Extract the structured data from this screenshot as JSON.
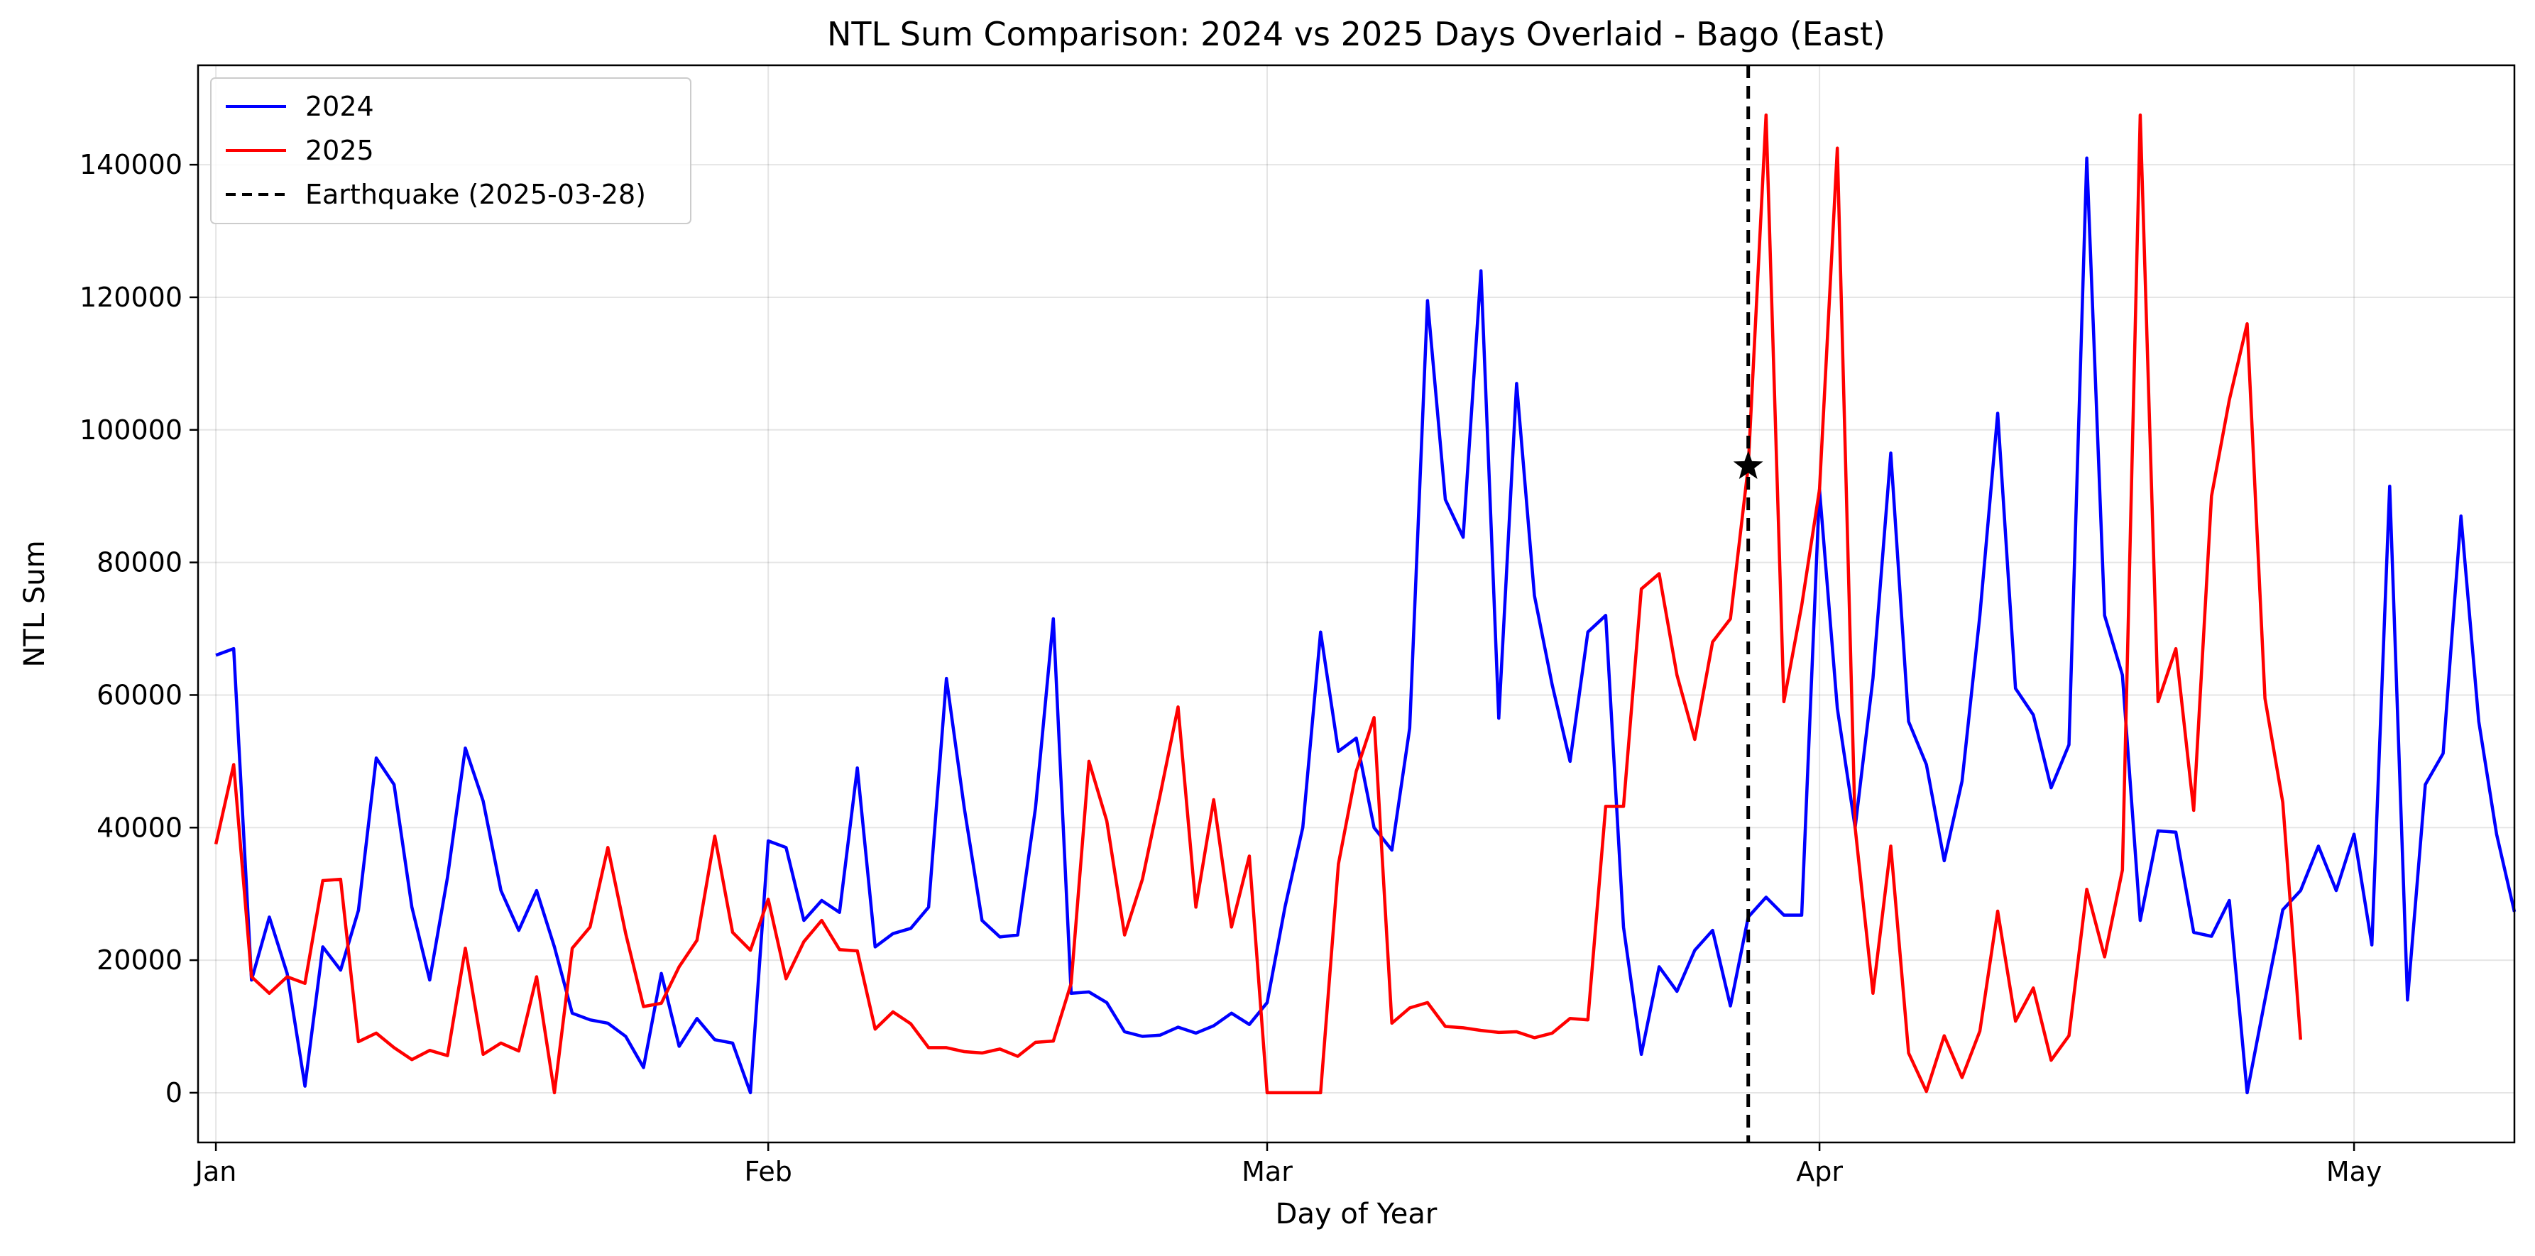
{
  "chart_data": {
    "type": "line",
    "title": "NTL Sum Comparison: 2024 vs 2025 Days Overlaid - Bago (East)",
    "xlabel": "Day of Year",
    "ylabel": "NTL Sum",
    "x_axis": {
      "unit": "day of year",
      "range": [
        0,
        130
      ],
      "ticks": [
        {
          "value": 1,
          "label": "Jan"
        },
        {
          "value": 32,
          "label": "Feb"
        },
        {
          "value": 60,
          "label": "Mar"
        },
        {
          "value": 91,
          "label": "Apr"
        },
        {
          "value": 121,
          "label": "May"
        }
      ]
    },
    "y_axis": {
      "range": [
        -7500,
        155000
      ],
      "ticks": [
        {
          "value": 0,
          "label": "0"
        },
        {
          "value": 20000,
          "label": "20000"
        },
        {
          "value": 40000,
          "label": "40000"
        },
        {
          "value": 60000,
          "label": "60000"
        },
        {
          "value": 80000,
          "label": "80000"
        },
        {
          "value": 100000,
          "label": "100000"
        },
        {
          "value": 120000,
          "label": "120000"
        },
        {
          "value": 140000,
          "label": "140000"
        }
      ]
    },
    "grid": true,
    "legend_position": "top-left",
    "series": [
      {
        "name": "2024",
        "color": "#0000ff",
        "x_start": 1,
        "values": [
          66000,
          67000,
          17000,
          26500,
          18000,
          1000,
          22000,
          18500,
          27500,
          50500,
          46500,
          28000,
          17000,
          32500,
          52000,
          44000,
          30500,
          24500,
          30500,
          22000,
          12000,
          11000,
          10500,
          8500,
          3800,
          18000,
          7000,
          11200,
          8000,
          7500,
          0,
          38000,
          37000,
          26000,
          29000,
          27200,
          49000,
          22000,
          24000,
          24800,
          28000,
          62500,
          43000,
          26000,
          23500,
          23800,
          43000,
          71500,
          15000,
          15200,
          13600,
          9200,
          8500,
          8700,
          9900,
          9000,
          10100,
          12000,
          10300,
          13600,
          28000,
          40000,
          69500,
          51500,
          53500,
          40000,
          36600,
          55000,
          119500,
          89500,
          83800,
          124000,
          56500,
          107000,
          75000,
          61500,
          50000,
          69500,
          72000,
          25000,
          5800,
          19000,
          15300,
          21500,
          24500,
          13100,
          26500,
          29500,
          26800,
          26800,
          91000,
          58000,
          40000,
          62500,
          96500,
          56000,
          49500,
          35000,
          47000,
          72000,
          102500,
          61000,
          57000,
          46000,
          52500,
          141000,
          72000,
          63000,
          26000,
          39500,
          39300,
          24200,
          23600,
          29000,
          0,
          14000,
          27600,
          30500,
          37200,
          30500,
          39000,
          22300,
          91500,
          14000,
          46500,
          51200,
          87000,
          56000,
          39000,
          27300
        ]
      },
      {
        "name": "2025",
        "color": "#ff0000",
        "x_start": 1,
        "values": [
          37500,
          49500,
          17500,
          15000,
          17500,
          16500,
          32000,
          32200,
          7700,
          9000,
          6800,
          5000,
          6400,
          5600,
          21800,
          5800,
          7500,
          6300,
          17500,
          0,
          21800,
          25000,
          37000,
          24000,
          13000,
          13500,
          19000,
          23000,
          38700,
          24200,
          21500,
          29200,
          17200,
          22800,
          26000,
          21600,
          21400,
          9600,
          12200,
          10400,
          6800,
          6800,
          6200,
          6000,
          6600,
          5500,
          7600,
          7800,
          16500,
          50000,
          41000,
          23800,
          32200,
          45000,
          58200,
          28000,
          44200,
          25000,
          35700,
          0,
          0,
          0,
          0,
          34500,
          48500,
          56600,
          10500,
          12800,
          13600,
          10000,
          9800,
          9400,
          9100,
          9200,
          8300,
          9000,
          11200,
          11000,
          43200,
          43200,
          76000,
          78300,
          63000,
          53300,
          68000,
          71500,
          94500,
          147500,
          59000,
          73500,
          91000,
          142500,
          40000,
          15000,
          37200,
          6000,
          200,
          8600,
          2300,
          9300,
          27400,
          10800,
          15800,
          4900,
          8600,
          30700,
          20500,
          33600,
          147500,
          59000,
          67000,
          42600,
          90000,
          104500,
          116000,
          59500,
          43800,
          8000
        ]
      }
    ],
    "annotations": {
      "vline": {
        "x": 87,
        "label": "Earthquake (2025-03-28)",
        "color": "#000000",
        "style": "dashed"
      },
      "marker": {
        "x": 87,
        "y": 94500,
        "shape": "star",
        "color": "#000000"
      }
    }
  }
}
